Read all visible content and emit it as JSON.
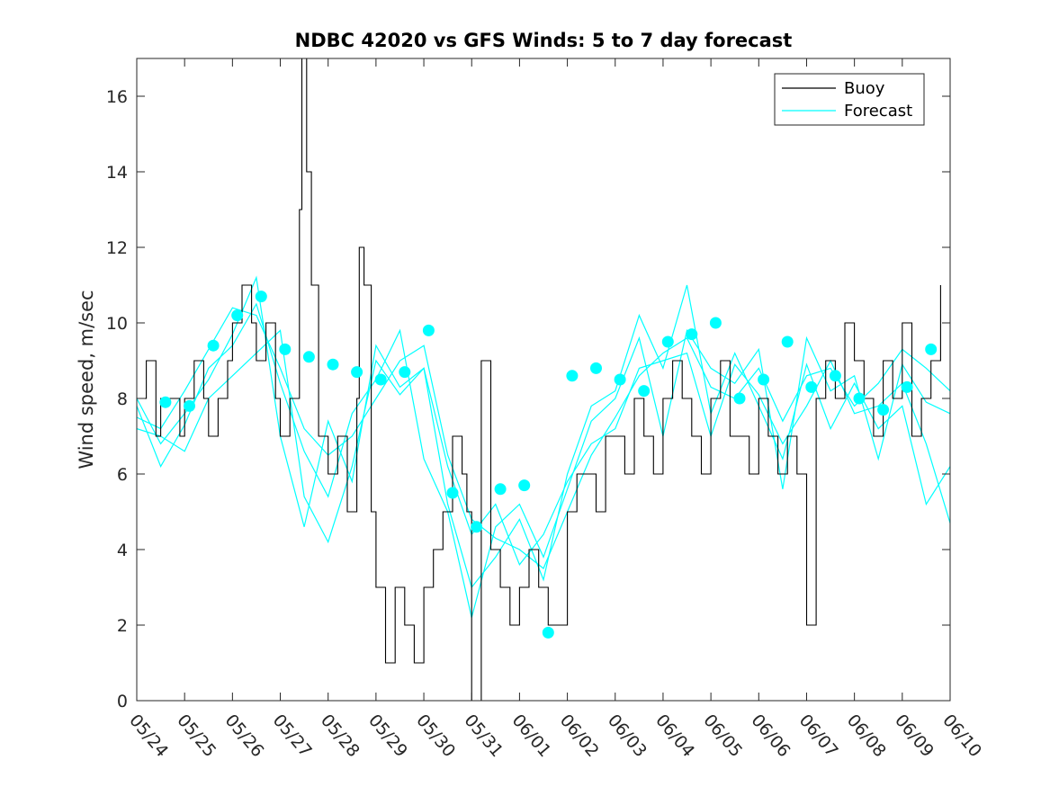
{
  "chart_data": {
    "type": "line",
    "title": "NDBC 42020 vs GFS Winds: 5 to 7 day forecast",
    "xlabel": "",
    "ylabel": "Wind speed, m/sec",
    "x_tick_labels": [
      "05/24",
      "05/25",
      "05/26",
      "05/27",
      "05/28",
      "05/29",
      "05/30",
      "05/31",
      "06/01",
      "06/02",
      "06/03",
      "06/04",
      "06/05",
      "06/06",
      "06/07",
      "06/08",
      "06/09",
      "06/10"
    ],
    "xlim_days": [
      0,
      17
    ],
    "ylim": [
      0,
      17
    ],
    "y_ticks": [
      0,
      2,
      4,
      6,
      8,
      10,
      12,
      14,
      16
    ],
    "grid": false,
    "legend_position": "top-right",
    "colors": {
      "buoy": "#000000",
      "forecast": "#00FFFF",
      "axis": "#262626"
    },
    "series": [
      {
        "name": "Buoy",
        "style": "line",
        "x": [
          0.0,
          0.2,
          0.4,
          0.5,
          0.7,
          0.9,
          1.0,
          1.2,
          1.4,
          1.5,
          1.7,
          1.9,
          2.0,
          2.2,
          2.4,
          2.5,
          2.7,
          2.9,
          3.0,
          3.2,
          3.4,
          3.45,
          3.55,
          3.65,
          3.8,
          4.0,
          4.2,
          4.4,
          4.6,
          4.65,
          4.75,
          4.9,
          5.0,
          5.2,
          5.4,
          5.6,
          5.8,
          6.0,
          6.2,
          6.4,
          6.6,
          6.8,
          6.9,
          7.0,
          7.2,
          7.4,
          7.6,
          7.8,
          8.0,
          8.2,
          8.4,
          8.6,
          8.8,
          9.0,
          9.2,
          9.4,
          9.6,
          9.8,
          10.0,
          10.2,
          10.4,
          10.6,
          10.8,
          11.0,
          11.2,
          11.4,
          11.6,
          11.8,
          12.0,
          12.2,
          12.4,
          12.6,
          12.8,
          13.0,
          13.2,
          13.4,
          13.6,
          13.8,
          14.0,
          14.2,
          14.4,
          14.6,
          14.8,
          15.0,
          15.2,
          15.4,
          15.6,
          15.8,
          16.0,
          16.2,
          16.4,
          16.6,
          16.8
        ],
        "values": [
          8,
          9,
          7,
          8,
          8,
          7,
          8,
          9,
          8,
          7,
          8,
          9,
          10,
          11,
          10,
          9,
          10,
          8,
          7,
          8,
          13,
          17,
          14,
          11,
          7,
          6,
          7,
          5,
          8,
          12,
          11,
          5,
          3,
          1,
          3,
          2,
          1,
          3,
          4,
          5,
          7,
          6,
          5,
          0,
          9,
          4,
          3,
          2,
          3,
          4,
          3,
          2,
          2,
          5,
          6,
          6,
          5,
          7,
          7,
          6,
          8,
          7,
          6,
          8,
          9,
          8,
          7,
          6,
          8,
          9,
          7,
          7,
          6,
          8,
          7,
          6,
          7,
          6,
          2,
          8,
          9,
          8,
          10,
          9,
          8,
          7,
          9,
          8,
          10,
          7,
          8,
          9,
          11
        ]
      },
      {
        "name": "Forecast",
        "style": "dots",
        "x": [
          0.6,
          1.1,
          1.6,
          2.1,
          2.6,
          3.1,
          3.6,
          4.1,
          4.6,
          5.1,
          5.6,
          6.1,
          6.6,
          7.1,
          7.6,
          8.1,
          8.6,
          9.1,
          9.6,
          10.1,
          10.6,
          11.1,
          11.6,
          12.1,
          12.6,
          13.1,
          13.6,
          14.1,
          14.6,
          15.1,
          15.6,
          16.1,
          16.6
        ],
        "values": [
          7.9,
          7.8,
          9.4,
          10.2,
          10.7,
          9.3,
          9.1,
          8.9,
          8.7,
          8.5,
          8.7,
          9.8,
          5.5,
          4.6,
          5.6,
          5.7,
          1.8,
          8.6,
          8.8,
          8.5,
          8.2,
          9.5,
          9.7,
          10.0,
          8.0,
          8.5,
          9.5,
          8.3,
          8.6,
          8.0,
          7.7,
          8.3,
          9.3
        ]
      },
      {
        "name": "",
        "style": "line",
        "x": [
          0.0,
          0.5,
          1.0,
          1.5,
          2.0,
          2.5,
          3.0,
          3.5,
          4.0,
          4.5,
          5.0,
          5.5,
          6.0,
          6.5,
          7.0,
          7.5,
          8.0,
          8.5,
          9.0,
          9.5,
          10.0,
          10.5,
          11.0,
          11.5,
          12.0,
          12.5,
          13.0,
          13.5,
          14.0,
          14.5,
          15.0,
          15.5,
          16.0,
          16.5,
          17.0
        ],
        "values": [
          7.5,
          7.2,
          8.2,
          9.3,
          10.4,
          10.2,
          8.8,
          7.2,
          6.5,
          7.0,
          8.0,
          9.0,
          9.4,
          6.5,
          4.8,
          4.3,
          4.0,
          3.5,
          5.0,
          6.5,
          7.5,
          8.6,
          9.2,
          9.6,
          8.3,
          8.0,
          8.8,
          7.4,
          8.6,
          8.8,
          7.8,
          8.4,
          9.3,
          8.8,
          8.2
        ]
      },
      {
        "name": "",
        "style": "line",
        "x": [
          0.0,
          0.5,
          1.0,
          1.5,
          2.0,
          2.5,
          3.0,
          3.5,
          4.0,
          4.5,
          5.0,
          5.5,
          6.0,
          6.5,
          7.0,
          7.5,
          8.0,
          8.5,
          9.0,
          9.5,
          10.0,
          10.5,
          11.0,
          11.5,
          12.0,
          12.5,
          13.0,
          13.5,
          14.0,
          14.5,
          15.0,
          15.5,
          16.0,
          16.5,
          17.0
        ],
        "values": [
          8.0,
          6.8,
          7.6,
          8.5,
          9.7,
          11.2,
          7.0,
          4.6,
          7.4,
          5.8,
          9.4,
          8.3,
          8.8,
          5.2,
          3.0,
          3.8,
          4.8,
          3.2,
          6.0,
          7.8,
          8.2,
          10.2,
          8.8,
          11.0,
          7.6,
          9.2,
          7.8,
          6.4,
          8.9,
          7.2,
          8.4,
          7.2,
          7.8,
          5.2,
          6.2
        ]
      },
      {
        "name": "",
        "style": "line",
        "x": [
          0.0,
          0.5,
          1.0,
          1.5,
          2.0,
          2.5,
          3.0,
          3.5,
          4.0,
          4.5,
          5.0,
          5.5,
          6.0,
          6.5,
          7.0,
          7.5,
          8.0,
          8.5,
          9.0,
          9.5,
          10.0,
          10.5,
          11.0,
          11.5,
          12.0,
          12.5,
          13.0,
          13.5,
          14.0,
          14.5,
          15.0,
          15.5,
          16.0,
          16.5,
          17.0
        ],
        "values": [
          7.8,
          6.2,
          7.3,
          8.8,
          9.4,
          10.5,
          8.4,
          6.6,
          5.4,
          7.6,
          8.5,
          9.8,
          6.4,
          5.0,
          2.2,
          4.6,
          5.2,
          3.8,
          5.6,
          7.4,
          8.0,
          9.6,
          7.0,
          9.8,
          8.8,
          8.4,
          9.3,
          5.6,
          9.6,
          8.2,
          8.6,
          6.4,
          8.9,
          7.9,
          7.6
        ]
      },
      {
        "name": "",
        "style": "line",
        "x": [
          0.0,
          0.5,
          1.0,
          1.5,
          2.0,
          2.5,
          3.0,
          3.5,
          4.0,
          4.5,
          5.0,
          5.5,
          6.0,
          6.5,
          7.0,
          7.5,
          8.0,
          8.5,
          9.0,
          9.5,
          10.0,
          10.5,
          11.0,
          11.5,
          12.0,
          12.5,
          13.0,
          13.5,
          14.0,
          14.5,
          15.0,
          15.5,
          16.0,
          16.5,
          17.0
        ],
        "values": [
          7.2,
          7.0,
          6.6,
          8.0,
          8.6,
          9.2,
          9.8,
          5.4,
          4.2,
          6.2,
          9.0,
          8.1,
          8.8,
          6.2,
          4.4,
          5.2,
          3.6,
          4.4,
          5.8,
          6.8,
          7.2,
          8.8,
          9.0,
          9.2,
          7.0,
          8.9,
          8.1,
          6.8,
          7.8,
          9.0,
          7.6,
          7.8,
          8.4,
          6.8,
          4.7
        ]
      }
    ]
  }
}
